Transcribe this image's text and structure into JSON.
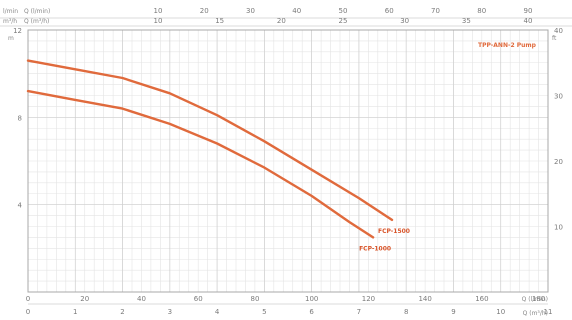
{
  "chart_data": {
    "type": "line",
    "title": "",
    "xlabel": "Q (m³/h)",
    "ylabel": "H (m)",
    "x_axis": {
      "unit": "Q (m³/h)",
      "range": [
        0,
        11
      ],
      "ticks": [
        "0",
        "1",
        "2",
        "3",
        "4",
        "5",
        "6",
        "7",
        "8",
        "9",
        "10",
        "11"
      ]
    },
    "x_axis_lpm": {
      "unit": "Q (l/min)",
      "range": [
        0,
        183.3
      ],
      "ticks": [
        "0",
        "20",
        "40",
        "60",
        "80",
        "100",
        "120",
        "140",
        "160",
        "180"
      ]
    },
    "top_axis_1": {
      "row_label": "l/min",
      "left_text": "Q (l/min)",
      "ticks": [
        "10",
        "20",
        "30",
        "40",
        "50",
        "60",
        "70",
        "80",
        "90"
      ]
    },
    "top_axis_2": {
      "row_label": "m³/h",
      "left_text": "Q (m³/h)",
      "ticks": [
        "10",
        "15",
        "20",
        "25",
        "30",
        "35",
        "40"
      ]
    },
    "y_axis": {
      "unit": "m",
      "range": [
        0,
        12
      ],
      "ticks": [
        "4",
        "8",
        "12"
      ]
    },
    "y_axis_right": {
      "unit": "ft",
      "range": [
        0,
        40
      ],
      "ticks": [
        "10",
        "20",
        "30",
        "40"
      ]
    },
    "grid": true,
    "legend_text": "TPP-ANN-2 Pump",
    "series": [
      {
        "name": "FCP-1500",
        "color": "#e06a3c",
        "points": [
          [
            0,
            10.6
          ],
          [
            1,
            10.2
          ],
          [
            2,
            9.8
          ],
          [
            3,
            9.1
          ],
          [
            4,
            8.1
          ],
          [
            5,
            6.9
          ],
          [
            6,
            5.6
          ],
          [
            7,
            4.3
          ],
          [
            7.7,
            3.3
          ]
        ]
      },
      {
        "name": "FCP-1000",
        "color": "#e06a3c",
        "points": [
          [
            0,
            9.2
          ],
          [
            1,
            8.8
          ],
          [
            2,
            8.4
          ],
          [
            3,
            7.7
          ],
          [
            4,
            6.8
          ],
          [
            5,
            5.7
          ],
          [
            6,
            4.4
          ],
          [
            6.8,
            3.2
          ],
          [
            7.3,
            2.5
          ]
        ]
      }
    ]
  }
}
